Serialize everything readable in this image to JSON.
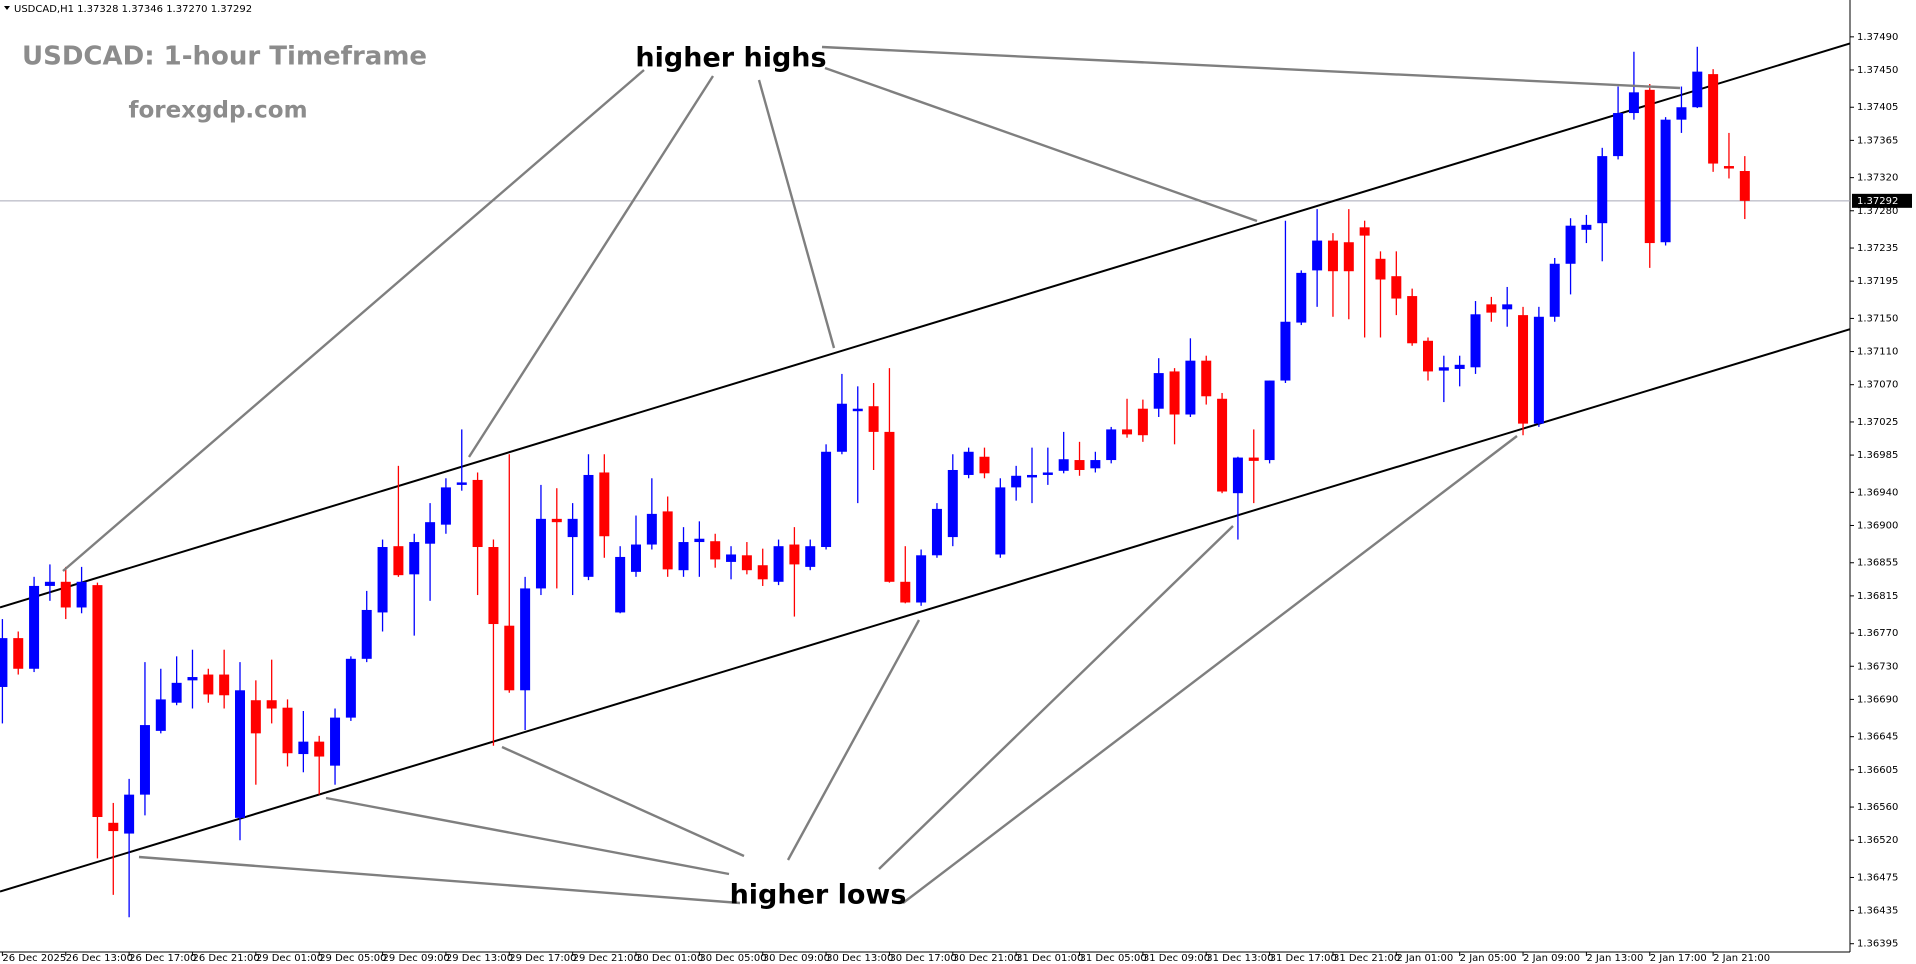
{
  "chart_data": {
    "type": "candlestick",
    "header": "USDCAD,H1  1.37328 1.37346 1.37270 1.37292",
    "title": "USDCAD: 1-hour Timeframe",
    "subtitle": "forexgdp.com",
    "annotations": [
      "higher highs",
      "higher lows"
    ],
    "up_color": "#0000ff",
    "down_color": "#ff0000",
    "categories": [
      "26 Dec 2025",
      null,
      null,
      null,
      "26 Dec 13:00",
      null,
      null,
      null,
      "26 Dec 17:00",
      null,
      null,
      null,
      "26 Dec 21:00",
      null,
      null,
      null,
      "29 Dec 01:00",
      null,
      null,
      null,
      "29 Dec 05:00",
      null,
      null,
      null,
      "29 Dec 09:00",
      null,
      null,
      null,
      "29 Dec 13:00",
      null,
      null,
      null,
      "29 Dec 17:00",
      null,
      null,
      null,
      "29 Dec 21:00",
      null,
      null,
      null,
      "30 Dec 01:00",
      null,
      null,
      null,
      "30 Dec 05:00",
      null,
      null,
      null,
      "30 Dec 09:00",
      null,
      null,
      null,
      "30 Dec 13:00",
      null,
      null,
      null,
      "30 Dec 17:00",
      null,
      null,
      null,
      "30 Dec 21:00",
      null,
      null,
      null,
      "31 Dec 01:00",
      null,
      null,
      null,
      "31 Dec 05:00",
      null,
      null,
      null,
      "31 Dec 09:00",
      null,
      null,
      null,
      "31 Dec 13:00",
      null,
      null,
      null,
      "31 Dec 17:00",
      null,
      null,
      null,
      "31 Dec 21:00",
      null,
      null,
      null,
      "2 Jan 01:00",
      null,
      null,
      null,
      "2 Jan 05:00",
      null,
      null,
      null,
      "2 Jan 09:00",
      null,
      null,
      null,
      "2 Jan 13:00",
      null,
      null,
      null,
      "2 Jan 17:00",
      null,
      null,
      null,
      "2 Jan 21:00",
      null,
      null
    ],
    "open": [
      1.36705,
      1.36764,
      1.36727,
      1.36827,
      1.36832,
      1.36801,
      1.36828,
      1.36541,
      1.36528,
      1.36575,
      1.36652,
      1.36686,
      1.36713,
      1.3672,
      1.3672,
      1.36547,
      1.36689,
      1.36689,
      1.3668,
      1.36624,
      1.36639,
      1.3661,
      1.36668,
      1.36739,
      1.36795,
      1.36875,
      1.36841,
      1.36878,
      1.36901,
      1.36949,
      1.36955,
      1.36874,
      1.36779,
      1.36701,
      1.36824,
      1.36908,
      1.36886,
      1.36838,
      1.36964,
      1.36795,
      1.36844,
      1.36877,
      1.36917,
      1.36846,
      1.3688,
      1.36881,
      1.36856,
      1.36864,
      1.36852,
      1.36832,
      1.36877,
      1.3685,
      1.36874,
      1.36989,
      1.37038,
      1.37044,
      1.37013,
      1.36832,
      1.36807,
      1.36864,
      1.36886,
      1.36961,
      1.36983,
      1.36865,
      1.36946,
      1.36958,
      1.36961,
      1.36966,
      1.36979,
      1.36969,
      1.36979,
      1.37016,
      1.37041,
      1.37041,
      1.37086,
      1.37034,
      1.37099,
      1.37053,
      1.36939,
      1.36982,
      1.36979,
      1.37075,
      1.37145,
      1.37208,
      1.37244,
      1.37242,
      1.3726,
      1.37222,
      1.37201,
      1.37177,
      1.37123,
      1.37087,
      1.37089,
      1.37091,
      1.37167,
      1.37161,
      1.37154,
      1.37023,
      1.37152,
      1.37216,
      1.37257,
      1.37265,
      1.37346,
      1.37398,
      1.37426,
      1.37242,
      1.3739,
      1.37405,
      1.37445,
      1.37334,
      1.37328
    ],
    "high": [
      1.36787,
      1.36772,
      1.36838,
      1.36853,
      1.3685,
      1.3685,
      1.36831,
      1.36565,
      1.36594,
      1.36735,
      1.36727,
      1.36742,
      1.3675,
      1.36727,
      1.3675,
      1.36735,
      1.36713,
      1.36738,
      1.3669,
      1.36676,
      1.36646,
      1.36679,
      1.36742,
      1.36821,
      1.36883,
      1.36972,
      1.3689,
      1.36927,
      1.36957,
      1.37016,
      1.36964,
      1.36883,
      1.36986,
      1.36838,
      1.36949,
      1.36945,
      1.36927,
      1.36986,
      1.36986,
      1.36875,
      1.36912,
      1.36957,
      1.36935,
      1.36898,
      1.36905,
      1.3689,
      1.36875,
      1.3688,
      1.36872,
      1.36883,
      1.36898,
      1.36883,
      1.36998,
      1.37083,
      1.37068,
      1.37072,
      1.3709,
      1.36875,
      1.36871,
      1.36927,
      1.36986,
      1.36994,
      1.36994,
      1.36957,
      1.36972,
      1.36994,
      1.36994,
      1.37013,
      1.37001,
      1.36989,
      1.37019,
      1.37053,
      1.37052,
      1.37102,
      1.3709,
      1.37126,
      1.37105,
      1.3706,
      1.36983,
      1.37016,
      1.37075,
      1.37268,
      1.37208,
      1.37282,
      1.37253,
      1.37282,
      1.37268,
      1.37231,
      1.37231,
      1.37186,
      1.37127,
      1.37105,
      1.37105,
      1.37171,
      1.37176,
      1.37188,
      1.37164,
      1.37164,
      1.37223,
      1.37271,
      1.37275,
      1.37356,
      1.3743,
      1.37472,
      1.37433,
      1.37393,
      1.3743,
      1.37478,
      1.37451,
      1.37374,
      1.37346
    ],
    "low": [
      1.36661,
      1.3672,
      1.36723,
      1.36809,
      1.36787,
      1.36794,
      1.36498,
      1.36454,
      1.36427,
      1.3655,
      1.36649,
      1.36683,
      1.36679,
      1.36686,
      1.36679,
      1.3652,
      1.36587,
      1.36661,
      1.36609,
      1.36602,
      1.36575,
      1.36587,
      1.36664,
      1.36735,
      1.36772,
      1.36838,
      1.36767,
      1.36809,
      1.3689,
      1.36942,
      1.36816,
      1.36634,
      1.36698,
      1.36653,
      1.36816,
      1.36824,
      1.36816,
      1.36834,
      1.36861,
      1.36794,
      1.36838,
      1.36871,
      1.36838,
      1.36838,
      1.36838,
      1.36849,
      1.36835,
      1.36841,
      1.36827,
      1.36828,
      1.3679,
      1.36846,
      1.36871,
      1.36986,
      1.36927,
      1.36967,
      1.36831,
      1.36806,
      1.36803,
      1.36861,
      1.36875,
      1.36957,
      1.36957,
      1.36861,
      1.3693,
      1.36927,
      1.36949,
      1.36963,
      1.3696,
      1.36964,
      1.36975,
      1.37006,
      1.37001,
      1.37031,
      1.36998,
      1.37031,
      1.37046,
      1.36939,
      1.36883,
      1.36927,
      1.36975,
      1.37072,
      1.37142,
      1.37164,
      1.37152,
      1.37149,
      1.37127,
      1.37127,
      1.37154,
      1.37117,
      1.37075,
      1.37049,
      1.37068,
      1.37083,
      1.37146,
      1.3714,
      1.37009,
      1.37019,
      1.37146,
      1.37179,
      1.37241,
      1.37219,
      1.37342,
      1.3739,
      1.37211,
      1.37238,
      1.37374,
      1.37404,
      1.37327,
      1.37319,
      1.3727
    ],
    "close": [
      1.36764,
      1.36727,
      1.36827,
      1.36832,
      1.36801,
      1.36832,
      1.36548,
      1.36531,
      1.36575,
      1.36659,
      1.3669,
      1.3671,
      1.36717,
      1.36696,
      1.36695,
      1.36701,
      1.36649,
      1.36679,
      1.36625,
      1.36639,
      1.36621,
      1.36668,
      1.36739,
      1.36798,
      1.36874,
      1.3684,
      1.3688,
      1.36904,
      1.36946,
      1.36952,
      1.36874,
      1.36781,
      1.36701,
      1.36824,
      1.36908,
      1.36904,
      1.36908,
      1.36961,
      1.36887,
      1.36862,
      1.36877,
      1.36914,
      1.36847,
      1.3688,
      1.36884,
      1.36859,
      1.36865,
      1.36846,
      1.36835,
      1.36875,
      1.36853,
      1.36875,
      1.36989,
      1.37047,
      1.37041,
      1.37013,
      1.36832,
      1.36807,
      1.36864,
      1.3692,
      1.36967,
      1.36989,
      1.36963,
      1.36946,
      1.3696,
      1.36961,
      1.36964,
      1.3698,
      1.36967,
      1.36979,
      1.37016,
      1.3701,
      1.37009,
      1.37084,
      1.37034,
      1.37099,
      1.37056,
      1.36941,
      1.36982,
      1.36978,
      1.37075,
      1.37146,
      1.37205,
      1.37244,
      1.37207,
      1.37207,
      1.3725,
      1.37197,
      1.37174,
      1.3712,
      1.37086,
      1.37091,
      1.37094,
      1.37155,
      1.37157,
      1.37167,
      1.37023,
      1.37152,
      1.37216,
      1.37262,
      1.37263,
      1.37346,
      1.37398,
      1.37423,
      1.37241,
      1.3739,
      1.37405,
      1.37448,
      1.37337,
      1.37331,
      1.37292
    ],
    "last_price": {
      "value": 1.37292,
      "label": "1.37292"
    },
    "trendlines": [
      {
        "values": [
          1.36801,
          1.37482
        ]
      },
      {
        "values": [
          1.36458,
          1.37137
        ]
      }
    ],
    "ylim": [
      1.36385,
      1.3752
    ],
    "yticks": [
      {
        "value": 1.3749,
        "label": "1.37490"
      },
      {
        "value": 1.3745,
        "label": "1.37450"
      },
      {
        "value": 1.37405,
        "label": "1.37405"
      },
      {
        "value": 1.37365,
        "label": "1.37365"
      },
      {
        "value": 1.3732,
        "label": "1.37320"
      },
      {
        "value": 1.3728,
        "label": "1.37280"
      },
      {
        "value": 1.37235,
        "label": "1.37235"
      },
      {
        "value": 1.37195,
        "label": "1.37195"
      },
      {
        "value": 1.3715,
        "label": "1.37150"
      },
      {
        "value": 1.3711,
        "label": "1.37110"
      },
      {
        "value": 1.3707,
        "label": "1.37070"
      },
      {
        "value": 1.37025,
        "label": "1.37025"
      },
      {
        "value": 1.36985,
        "label": "1.36985"
      },
      {
        "value": 1.3694,
        "label": "1.36940"
      },
      {
        "value": 1.369,
        "label": "1.36900"
      },
      {
        "value": 1.36855,
        "label": "1.36855"
      },
      {
        "value": 1.36815,
        "label": "1.36815"
      },
      {
        "value": 1.3677,
        "label": "1.36770"
      },
      {
        "value": 1.3673,
        "label": "1.36730"
      },
      {
        "value": 1.3669,
        "label": "1.36690"
      },
      {
        "value": 1.36645,
        "label": "1.36645"
      },
      {
        "value": 1.36605,
        "label": "1.36605"
      },
      {
        "value": 1.3656,
        "label": "1.36560"
      },
      {
        "value": 1.3652,
        "label": "1.36520"
      },
      {
        "value": 1.36475,
        "label": "1.36475"
      },
      {
        "value": 1.36435,
        "label": "1.36435"
      },
      {
        "value": 1.36395,
        "label": "1.36395"
      }
    ]
  }
}
